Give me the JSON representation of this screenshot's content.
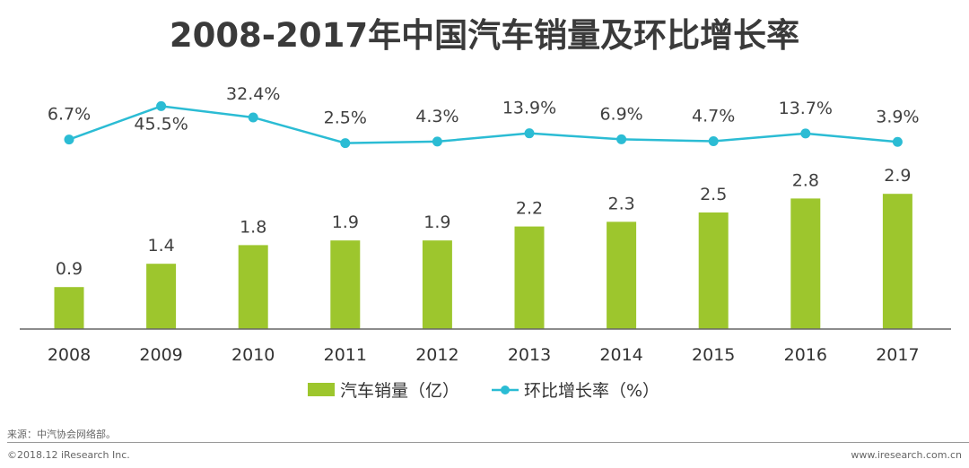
{
  "chart_data": {
    "type": "bar+line",
    "title": "2008-2017年中国汽车销量及环比增长率",
    "categories": [
      "2008",
      "2009",
      "2010",
      "2011",
      "2012",
      "2013",
      "2014",
      "2015",
      "2016",
      "2017"
    ],
    "series": [
      {
        "name": "汽车销量（亿）",
        "type": "bar",
        "color": "#9dc62d",
        "values": [
          0.9,
          1.4,
          1.8,
          1.9,
          1.9,
          2.2,
          2.3,
          2.5,
          2.8,
          2.9
        ],
        "labels": [
          "0.9",
          "1.4",
          "1.8",
          "1.9",
          "1.9",
          "2.2",
          "2.3",
          "2.5",
          "2.8",
          "2.9"
        ]
      },
      {
        "name": "环比增长率（%）",
        "type": "line",
        "color": "#2bbcd4",
        "values": [
          6.7,
          45.5,
          32.4,
          2.5,
          4.3,
          13.9,
          6.9,
          4.7,
          13.7,
          3.9
        ],
        "labels": [
          "6.7%",
          "45.5%",
          "32.4%",
          "2.5%",
          "4.3%",
          "13.9%",
          "6.9%",
          "4.7%",
          "13.7%",
          "3.9%"
        ]
      }
    ],
    "bar_ylim": [
      0,
      3.9
    ],
    "legend": "bottom-center"
  },
  "footer": {
    "source": "来源：中汽协会网络部。",
    "copyright": "©2018.12 iResearch Inc.",
    "website": "www.iresearch.com.cn"
  }
}
